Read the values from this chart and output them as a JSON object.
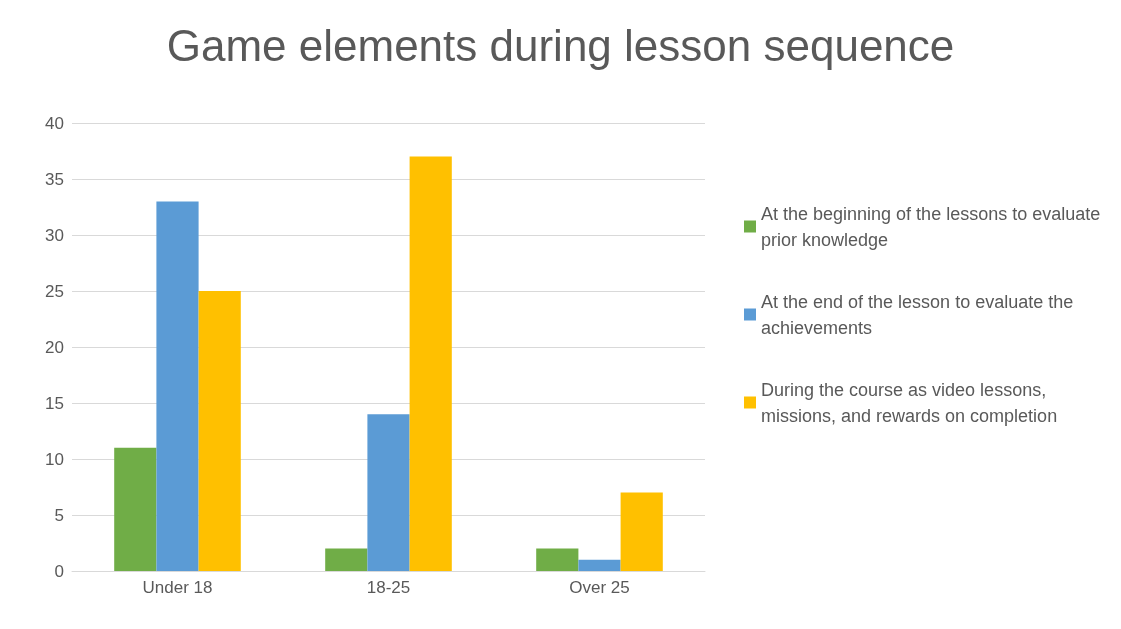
{
  "chart_data": {
    "type": "bar",
    "title": "Game elements during lesson sequence",
    "categories": [
      "Under 18",
      "18-25",
      "Over 25"
    ],
    "series": [
      {
        "name": "At the beginning of the lessons to evaluate prior knowledge",
        "color": "#70ad47",
        "values": [
          11,
          2,
          2
        ]
      },
      {
        "name": "At the end of the lesson to evaluate the achievements",
        "color": "#5b9bd5",
        "values": [
          33,
          14,
          1
        ]
      },
      {
        "name": "During the course as video lessons, missions, and rewards on completion",
        "color": "#ffc000",
        "values": [
          25,
          37,
          7
        ]
      }
    ],
    "ylim": [
      0,
      40
    ],
    "yticks": [
      0,
      5,
      10,
      15,
      20,
      25,
      30,
      35,
      40
    ],
    "grid": "y",
    "legend": "right"
  }
}
